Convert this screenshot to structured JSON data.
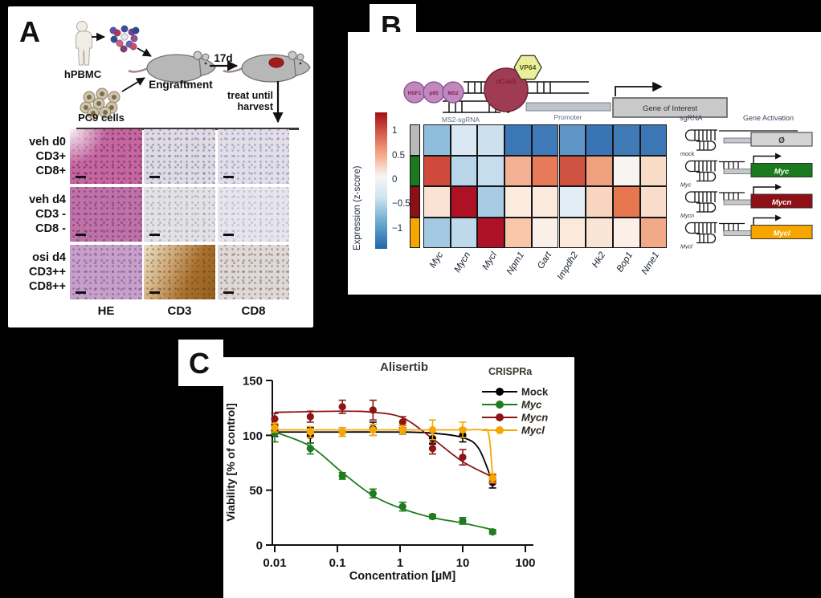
{
  "background": "#000000",
  "panelA": {
    "label": "A",
    "schematic": {
      "hpbmc": "hPBMC",
      "pc9": "PC9 cells",
      "engraftment": "Engraftment",
      "duration": "17d",
      "treat_line1": "treat until",
      "treat_line2": "harvest"
    },
    "histology": {
      "columns": [
        "HE",
        "CD3",
        "CD8"
      ],
      "rows": [
        {
          "lines": [
            "veh d0",
            "CD3+",
            "CD8+"
          ],
          "tiles": [
            {
              "name": "HE",
              "base": "#c2679f",
              "speckle": "rgba(122,28,84,0.6)",
              "wash": "rgba(252,248,252,0.95)"
            },
            {
              "name": "CD3",
              "base": "#dfdbe2",
              "speckle": "rgba(90,95,150,0.5)"
            },
            {
              "name": "CD8",
              "base": "#e1dee8",
              "speckle": "rgba(100,105,160,0.45)"
            }
          ]
        },
        {
          "lines": [
            "veh d4",
            "CD3 -",
            "CD8 -"
          ],
          "tiles": [
            {
              "name": "HE",
              "base": "#bd72a8",
              "speckle": "rgba(115,35,95,0.55)"
            },
            {
              "name": "CD3",
              "base": "#e4e1e3",
              "speckle": "rgba(110,115,165,0.4)"
            },
            {
              "name": "CD8",
              "base": "#e7e5ec",
              "speckle": "rgba(120,125,175,0.35)"
            }
          ]
        },
        {
          "lines": [
            "osi d4",
            "CD3++",
            "CD8++"
          ],
          "tiles": [
            {
              "name": "HE",
              "base": "#c6a0c8",
              "speckle": "rgba(110,60,130,0.5)"
            },
            {
              "name": "CD3",
              "base": "#b98049",
              "speckle": "rgba(80,45,10,0.55), ",
              "gradient": [
                "#e9e0c8",
                "#d3b183",
                "#a86f2e",
                "#93601f"
              ]
            },
            {
              "name": "CD8",
              "base": "#ddd8da",
              "speckle": "rgba(130,85,40,0.5)"
            }
          ]
        }
      ]
    }
  },
  "panelB": {
    "label": "B",
    "schematic": {
      "complex1": "HSF1",
      "complex2": "p65",
      "complex3": "MS2",
      "vp64": "VP64",
      "dcas9": "dCas9",
      "ms2_sgrna": "MS2-sgRNA",
      "promoter": "Promoter",
      "gene_of_interest": "Gene of Interest"
    },
    "right": {
      "sgrna_header": "sgRNA",
      "activation_header": "Gene Activation",
      "rows": [
        {
          "label": "mock",
          "italic": false,
          "gene": "Ø",
          "gene_color": "#d4d4d4",
          "gene_text": "#3a3a3a",
          "arrow": false
        },
        {
          "label": "Myc",
          "italic": true,
          "gene": "Myc",
          "gene_color": "#1b7a1f",
          "gene_text": "#ffffff",
          "arrow": true
        },
        {
          "label": "Mycn",
          "italic": true,
          "gene": "Mycn",
          "gene_color": "#8e0f16",
          "gene_text": "#ffffff",
          "arrow": true
        },
        {
          "label": "Mycl",
          "italic": true,
          "gene": "Mycl",
          "gene_color": "#f7a600",
          "gene_text": "#ffffff",
          "arrow": true
        }
      ]
    }
  },
  "panelC": {
    "label": "C"
  },
  "chart_data": [
    {
      "type": "heatmap",
      "colorbar_label": "Expression (z-score)",
      "colorbar_tick_labels": [
        "1",
        "0.5",
        "0",
        "−0.5",
        "−1"
      ],
      "colorbar_tick_values": [
        1,
        0.5,
        0,
        -0.5,
        -1
      ],
      "colorbar_range": [
        1.4,
        -1.4
      ],
      "columns": [
        "Myc",
        "Mycn",
        "Mycl",
        "Npm1",
        "Gart",
        "Impdh2",
        "Hk2",
        "Bop1",
        "Nme1"
      ],
      "rows": [
        "mock",
        "Myc",
        "Mycn",
        "Mycl"
      ],
      "row_colors": [
        "#b9b9b9",
        "#1b7a1f",
        "#8e0f16",
        "#f7a600"
      ],
      "values": [
        [
          -0.6,
          -0.25,
          -0.3,
          -1.3,
          -1.25,
          -1.0,
          -1.35,
          -1.25,
          -1.3
        ],
        [
          1.1,
          -0.45,
          -0.35,
          0.5,
          0.85,
          1.05,
          0.6,
          0.05,
          0.25
        ],
        [
          0.2,
          1.4,
          -0.5,
          0.15,
          0.15,
          -0.15,
          0.3,
          0.85,
          0.25
        ],
        [
          -0.5,
          -0.4,
          1.4,
          0.4,
          0.1,
          0.15,
          0.2,
          0.1,
          0.55
        ]
      ],
      "cell_colors": [
        [
          "#8fbedd",
          "#d9e8f2",
          "#cce0ee",
          "#3b76b5",
          "#3f7ab8",
          "#5e95c6",
          "#3974b4",
          "#407bb8",
          "#3b76b5"
        ],
        [
          "#cf4a3c",
          "#b8d5ea",
          "#c6ddee",
          "#f5b193",
          "#e77a58",
          "#d05341",
          "#f1a07e",
          "#f7f4f1",
          "#f8dcc8"
        ],
        [
          "#fae3d4",
          "#ae1125",
          "#a8cce4",
          "#fcebdf",
          "#fbe9dd",
          "#e2edf5",
          "#f9d5bf",
          "#e5764f",
          "#f9dcca"
        ],
        [
          "#a2c8e2",
          "#bed9ec",
          "#ae1125",
          "#f8c7a9",
          "#faf0e9",
          "#fbe9dc",
          "#fae4d5",
          "#fcefe7",
          "#f2a987"
        ]
      ]
    },
    {
      "type": "line",
      "title": "Alisertib",
      "xlabel": "Concentration [µM]",
      "ylabel": "Viability [% of control]",
      "legend_title": "CRISPRa",
      "x_scale": "log",
      "xlim": [
        0.01,
        100
      ],
      "ylim": [
        0,
        150
      ],
      "xticks": [
        0.01,
        0.1,
        1,
        10,
        100
      ],
      "xtick_labels": [
        "0.01",
        "0.1",
        "1",
        "10",
        "100"
      ],
      "yticks": [
        0,
        50,
        100,
        150
      ],
      "x": [
        0.01,
        0.037,
        0.12,
        0.37,
        1.1,
        3.3,
        10,
        30
      ],
      "series": [
        {
          "name": "Mock",
          "italic": false,
          "color": "#000000",
          "values": [
            104,
            100,
            103,
            106,
            105,
            97,
            100,
            57
          ],
          "errors": [
            5,
            7,
            4,
            6,
            4,
            5,
            6,
            5
          ],
          "fit": [
            [
              0.01,
              103
            ],
            [
              0.12,
              103
            ],
            [
              1.1,
              103
            ],
            [
              3.3,
              102
            ],
            [
              10,
              98
            ],
            [
              18,
              88
            ],
            [
              30,
              57
            ]
          ]
        },
        {
          "name": "Myc",
          "italic": true,
          "color": "#1e7b1e",
          "values": [
            102,
            88,
            63,
            47,
            35,
            26,
            22,
            12
          ],
          "errors": [
            8,
            5,
            3,
            4,
            4,
            2,
            3,
            2
          ],
          "fit": [
            [
              0.01,
              103
            ],
            [
              0.037,
              90
            ],
            [
              0.12,
              66
            ],
            [
              0.37,
              45
            ],
            [
              1.1,
              33
            ],
            [
              3.3,
              25
            ],
            [
              10,
              20
            ],
            [
              30,
              14
            ]
          ]
        },
        {
          "name": "Mycn",
          "italic": true,
          "color": "#8e1515",
          "values": [
            115,
            117,
            126,
            123,
            112,
            88,
            80,
            60
          ],
          "errors": [
            5,
            5,
            6,
            9,
            5,
            5,
            7,
            4
          ],
          "fit": [
            [
              0.01,
              121
            ],
            [
              0.12,
              122
            ],
            [
              0.37,
              121
            ],
            [
              1.1,
              116
            ],
            [
              3.3,
              97
            ],
            [
              10,
              76
            ],
            [
              30,
              62
            ]
          ]
        },
        {
          "name": "Mycl",
          "italic": true,
          "color": "#f7a600",
          "values": [
            107,
            103,
            103,
            105,
            105,
            105,
            105,
            61
          ],
          "errors": [
            4,
            5,
            4,
            5,
            4,
            9,
            7,
            4
          ],
          "fit": [
            [
              0.01,
              105
            ],
            [
              1.1,
              105
            ],
            [
              10,
              105
            ],
            [
              20,
              105
            ],
            [
              26,
              101
            ],
            [
              30,
              62
            ]
          ]
        }
      ]
    }
  ]
}
